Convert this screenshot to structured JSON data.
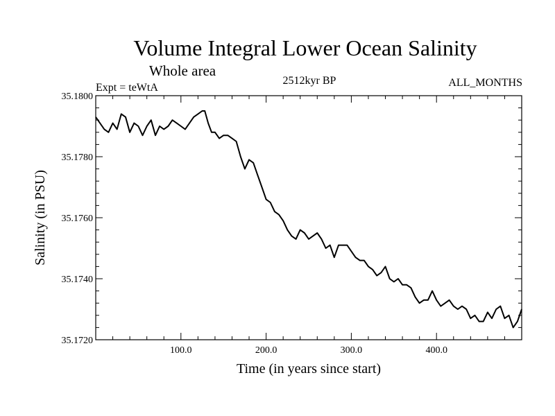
{
  "chart_data": {
    "type": "line",
    "title": "Volume Integral Lower Ocean Salinity",
    "subtitle": "Whole area",
    "expt_label": "Expt = teWtA",
    "period_label": "2512kyr BP",
    "months_label": "ALL_MONTHS",
    "xlabel": "Time (in years since start)",
    "ylabel": "Salinity (in PSU)",
    "xlim": [
      0,
      500
    ],
    "ylim": [
      35.172,
      35.18
    ],
    "x_ticks": [
      100,
      200,
      300,
      400
    ],
    "x_tick_labels": [
      "100.0",
      "200.0",
      "300.0",
      "400.0"
    ],
    "y_ticks": [
      35.172,
      35.174,
      35.176,
      35.178,
      35.18
    ],
    "y_tick_labels": [
      "35.1720",
      "35.1740",
      "35.1760",
      "35.1780",
      "35.1800"
    ],
    "grid": false,
    "series": [
      {
        "name": "salinity",
        "color": "#000000",
        "x": [
          0,
          5,
          10,
          15,
          20,
          25,
          30,
          35,
          40,
          45,
          50,
          55,
          60,
          65,
          70,
          75,
          80,
          85,
          90,
          95,
          100,
          105,
          110,
          115,
          120,
          125,
          128,
          132,
          136,
          140,
          145,
          150,
          155,
          160,
          165,
          170,
          175,
          180,
          185,
          190,
          195,
          200,
          205,
          210,
          215,
          220,
          225,
          230,
          235,
          240,
          245,
          250,
          255,
          260,
          265,
          270,
          275,
          280,
          285,
          290,
          295,
          300,
          305,
          310,
          315,
          320,
          325,
          330,
          335,
          340,
          345,
          350,
          355,
          360,
          365,
          370,
          375,
          380,
          385,
          390,
          395,
          400,
          405,
          410,
          415,
          420,
          425,
          430,
          435,
          440,
          445,
          450,
          455,
          460,
          465,
          470,
          475,
          480,
          485,
          490,
          495,
          500
        ],
        "values": [
          35.1793,
          35.1791,
          35.1789,
          35.1788,
          35.1791,
          35.1789,
          35.1794,
          35.1793,
          35.1788,
          35.1791,
          35.179,
          35.1787,
          35.179,
          35.1792,
          35.1787,
          35.179,
          35.1789,
          35.179,
          35.1792,
          35.1791,
          35.179,
          35.1789,
          35.1791,
          35.1793,
          35.1794,
          35.1795,
          35.1795,
          35.1791,
          35.1788,
          35.1788,
          35.1786,
          35.1787,
          35.1787,
          35.1786,
          35.1785,
          35.178,
          35.1776,
          35.1779,
          35.1778,
          35.1774,
          35.177,
          35.1766,
          35.1765,
          35.1762,
          35.1761,
          35.1759,
          35.1756,
          35.1754,
          35.1753,
          35.1756,
          35.1755,
          35.1753,
          35.1754,
          35.1755,
          35.1753,
          35.175,
          35.1751,
          35.1747,
          35.1751,
          35.1751,
          35.1751,
          35.1749,
          35.1747,
          35.1746,
          35.1746,
          35.1744,
          35.1743,
          35.1741,
          35.1742,
          35.1744,
          35.174,
          35.1739,
          35.174,
          35.1738,
          35.1738,
          35.1737,
          35.1734,
          35.1732,
          35.1733,
          35.1733,
          35.1736,
          35.1733,
          35.1731,
          35.1732,
          35.1733,
          35.1731,
          35.173,
          35.1731,
          35.173,
          35.1727,
          35.1728,
          35.1726,
          35.1726,
          35.1729,
          35.1727,
          35.173,
          35.1731,
          35.1727,
          35.1728,
          35.1724,
          35.1726,
          35.173
        ]
      }
    ]
  }
}
